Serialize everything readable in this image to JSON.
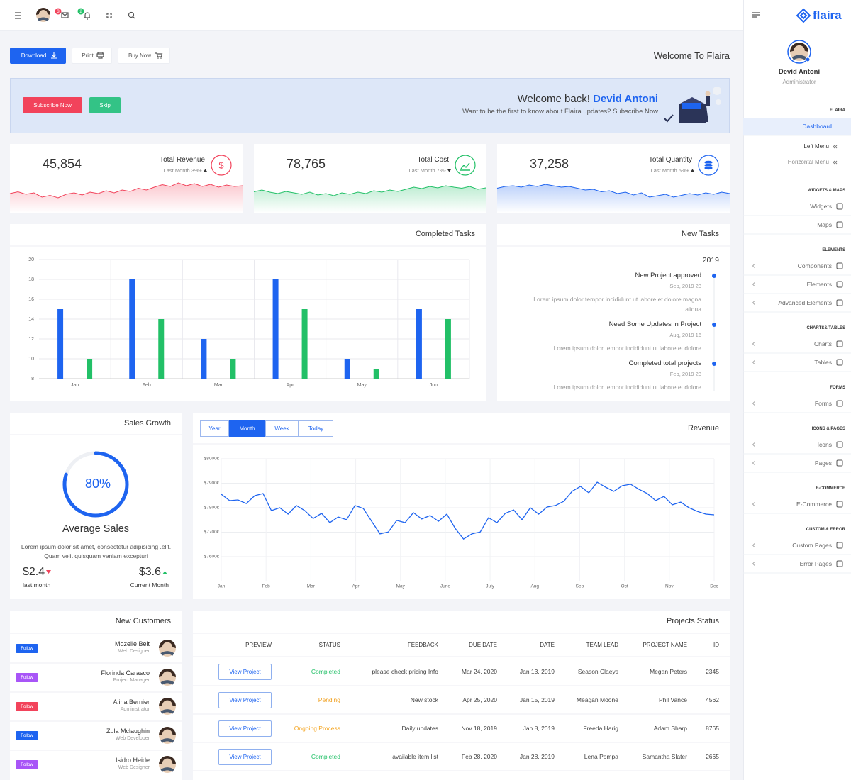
{
  "topbar": {
    "mail_badge": "3",
    "notification_badge": "2"
  },
  "toolbar": {
    "buttons": [
      "Download",
      "Print",
      "Buy Now"
    ],
    "heading": "Welcome To Flaira"
  },
  "banner": {
    "subscribe": "Subscribe Now",
    "skip": "Skip",
    "greeting": "Welcome back!",
    "user": "Devid Antoni",
    "text": "Want to be the first to know about Flaira updates? Subscribe Now"
  },
  "stats": [
    {
      "value": "45,854",
      "label": "Total Revenue",
      "change": "Last Month 3%+",
      "trend": "up",
      "icon": "$",
      "color": "#f2435b",
      "spark": {
        "type": "area",
        "ylim": [
          0,
          100
        ],
        "values": [
          40,
          45,
          38,
          42,
          30,
          35,
          28,
          38,
          42,
          36,
          44,
          40,
          48,
          42,
          50,
          46,
          55,
          50,
          58,
          65,
          60,
          70,
          62,
          68,
          60,
          66,
          58,
          64,
          60,
          62
        ]
      }
    },
    {
      "value": "78,765",
      "label": "Total Cost",
      "change": "Last Month 7%-",
      "trend": "down",
      "color": "#22c067",
      "spark": {
        "type": "area",
        "ylim": [
          0,
          100
        ],
        "values": [
          45,
          50,
          44,
          40,
          46,
          42,
          38,
          44,
          36,
          40,
          34,
          42,
          38,
          44,
          40,
          48,
          44,
          50,
          46,
          52,
          58,
          54,
          60,
          56,
          62,
          58,
          55,
          60,
          52,
          56
        ]
      }
    },
    {
      "value": "37,258",
      "label": "Total Quantity",
      "change": "Last Month 5%+",
      "trend": "up",
      "color": "#1e64f0",
      "spark": {
        "type": "area",
        "ylim": [
          0,
          100
        ],
        "values": [
          55,
          60,
          62,
          58,
          64,
          60,
          66,
          62,
          58,
          60,
          55,
          50,
          52,
          45,
          48,
          40,
          44,
          36,
          42,
          30,
          34,
          38,
          30,
          35,
          40,
          36,
          42,
          38,
          44,
          40
        ]
      }
    }
  ],
  "completed_tasks": {
    "type": "bar",
    "title": "Completed Tasks",
    "categories": [
      "Jan",
      "Feb",
      "Mar",
      "Apr",
      "May",
      "Jun"
    ],
    "series": [
      {
        "color": "#1e64f0",
        "values": [
          15,
          18,
          12,
          18,
          10,
          15
        ]
      },
      {
        "color": "#22c067",
        "values": [
          10,
          14,
          10,
          15,
          9,
          14
        ]
      }
    ],
    "ylim": [
      8,
      20
    ],
    "yticks": [
      8,
      10,
      12,
      14,
      16,
      18,
      20
    ],
    "grid": true
  },
  "new_tasks": {
    "title": "New Tasks",
    "year": "2019",
    "items": [
      {
        "title": "New Project approved",
        "date": "Sep, 2019 23",
        "text": "Lorem ipsum dolor tempor incididunt ut labore et dolore magna .aliqua"
      },
      {
        "title": "Need Some Updates in Project",
        "date": "Aug, 2019 16",
        "text": ".Lorem ipsum dolor tempor incididunt ut labore et dolore"
      },
      {
        "title": "Completed total projects",
        "date": "Feb, 2019 23",
        "text": ".Lorem ipsum dolor tempor incididunt ut labore et dolore"
      }
    ]
  },
  "sales_growth": {
    "title": "Sales Growth",
    "progress": {
      "value": 80,
      "label": "80%"
    },
    "color": "#1e64f0",
    "heading": "Average Sales",
    "text": "Lorem ipsum dolor sit amet, consectetur adipisicing .elit. Quam velit quisquam veniam excepturi",
    "last": {
      "value": "$2.4",
      "label": "last month"
    },
    "current": {
      "value": "$3.6",
      "label": "Current Month"
    }
  },
  "revenue": {
    "type": "line",
    "title": "Revenue",
    "tabs": [
      "Year",
      "Month",
      "Week",
      "Today"
    ],
    "active_tab": 1,
    "color": "#1e64f0",
    "xlabels": [
      "Jan",
      "Feb",
      "Mar",
      "Apr",
      "May",
      "June",
      "July",
      "Aug",
      "Sep",
      "Oct",
      "Nov",
      "Dec"
    ],
    "ylim": [
      7500,
      8000
    ],
    "yticks": [
      {
        "value": 7600,
        "label": "$7600k"
      },
      {
        "value": 7700,
        "label": "$7700k"
      },
      {
        "value": 7800,
        "label": "$7800k"
      },
      {
        "value": 7900,
        "label": "$7900k"
      },
      {
        "value": 8000,
        "label": "$8000k"
      }
    ],
    "grid": true,
    "values": [
      7855,
      7829,
      7832,
      7817,
      7849,
      7858,
      7788,
      7800,
      7774,
      7809,
      7788,
      7756,
      7777,
      7739,
      7762,
      7751,
      7809,
      7797,
      7745,
      7693,
      7701,
      7748,
      7739,
      7780,
      7754,
      7768,
      7745,
      7774,
      7716,
      7672,
      7693,
      7701,
      7759,
      7739,
      7777,
      7791,
      7751,
      7800,
      7774,
      7803,
      7809,
      7826,
      7867,
      7887,
      7861,
      7904,
      7884,
      7867,
      7890,
      7896,
      7875,
      7858,
      7829,
      7846,
      7812,
      7823,
      7800,
      7785,
      7774,
      7771
    ]
  },
  "new_customers": {
    "title": "New Customers",
    "button": "Follow",
    "rows": [
      {
        "name": "Mozelle Belt",
        "role": "Web Designer",
        "color": "#1e64f0"
      },
      {
        "name": "Florinda Carasco",
        "role": "Project Manager",
        "color": "#a855f7"
      },
      {
        "name": "Alina Bernier",
        "role": "Administrator",
        "color": "#f2435b"
      },
      {
        "name": "Zula Mclaughin",
        "role": "Web Developer",
        "color": "#1e64f0"
      },
      {
        "name": "Isidro Heide",
        "role": "Web Designer",
        "color": "#a855f7"
      }
    ]
  },
  "projects": {
    "title": "Projects Status",
    "columns": [
      "PREVIEW",
      "STATUS",
      "FEEDBACK",
      "DUE DATE",
      "DATE",
      "TEAM LEAD",
      "PROJECT NAME",
      "ID"
    ],
    "rows": [
      {
        "preview": "View Project",
        "status": "Completed",
        "status_color": "#22c067",
        "feedback": "please check pricing Info",
        "due_date": "Mar 24, 2020",
        "date": "Jan 13, 2019",
        "team_lead": "Season Claeys",
        "project_name": "Megan Peters",
        "id": "2345"
      },
      {
        "preview": "View Project",
        "status": "Pending",
        "status_color": "#f0a020",
        "feedback": "New stock",
        "due_date": "Apr 25, 2020",
        "date": "Jan 15, 2019",
        "team_lead": "Meagan Moone",
        "project_name": "Phil Vance",
        "id": "4562"
      },
      {
        "preview": "View Project",
        "status": "Ongoing Process",
        "status_color": "#f5a623",
        "feedback": "Daily updates",
        "due_date": "Nov 18, 2019",
        "date": "Jan 8, 2019",
        "team_lead": "Freeda Harig",
        "project_name": "Adam Sharp",
        "id": "8765"
      },
      {
        "preview": "View Project",
        "status": "Completed",
        "status_color": "#22c067",
        "feedback": "available item list",
        "due_date": "Feb 28, 2020",
        "date": "Jan 28, 2019",
        "team_lead": "Lena Pompa",
        "project_name": "Samantha Slater",
        "id": "2665"
      }
    ]
  },
  "sidebar": {
    "logo": "flaira",
    "user": "Devid Antoni",
    "role": "Administrator",
    "sections": [
      {
        "title": "FLAIRA",
        "items": [
          {
            "label": "Dashboard",
            "active": true,
            "submenu": true,
            "children": [
              "Left Menu",
              "Horizontal Menu"
            ]
          }
        ]
      },
      {
        "title": "WIDGETS & MAPS",
        "items": [
          {
            "label": "Widgets"
          },
          {
            "label": "Maps"
          }
        ]
      },
      {
        "title": "ELEMENTS",
        "items": [
          {
            "label": "Components",
            "submenu": true
          },
          {
            "label": "Elements",
            "submenu": true
          },
          {
            "label": "Advanced Elements",
            "submenu": true
          }
        ]
      },
      {
        "title": "CHARTS& TABLES",
        "items": [
          {
            "label": "Charts",
            "submenu": true
          },
          {
            "label": "Tables",
            "submenu": true
          }
        ]
      },
      {
        "title": "FORMS",
        "items": [
          {
            "label": "Forms",
            "submenu": true
          }
        ]
      },
      {
        "title": "ICONS & PAGES",
        "items": [
          {
            "label": "Icons",
            "submenu": true
          },
          {
            "label": "Pages",
            "submenu": true
          }
        ]
      },
      {
        "title": "E-COMMERCE",
        "items": [
          {
            "label": "E-Commerce",
            "submenu": true
          }
        ]
      },
      {
        "title": "CUSTOM & ERROR",
        "items": [
          {
            "label": "Custom Pages",
            "submenu": true
          },
          {
            "label": "Error Pages",
            "submenu": true
          }
        ]
      }
    ]
  }
}
